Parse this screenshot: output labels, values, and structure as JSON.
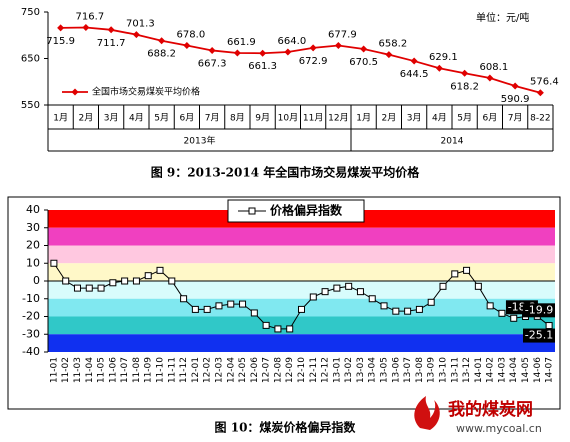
{
  "chart_data": [
    {
      "type": "line",
      "caption": "图 9：2013-2014 年全国市场交易煤炭平均价格",
      "unit": "单位：元/吨",
      "groups": [
        {
          "label": "2013年",
          "categories": [
            "1月",
            "2月",
            "3月",
            "4月",
            "5月",
            "6月",
            "7月",
            "8月",
            "9月",
            "10月",
            "11月",
            "12月"
          ]
        },
        {
          "label": "2014",
          "categories": [
            "1月",
            "2月",
            "3月",
            "4月",
            "5月",
            "6月",
            "7月",
            "8-22"
          ]
        }
      ],
      "series": [
        {
          "name": "全国市场交易煤炭平均价格",
          "color": "#e00000",
          "marker": "diamond",
          "values": [
            715.9,
            716.7,
            711.7,
            701.3,
            688.2,
            678.0,
            667.3,
            661.9,
            661.3,
            664.0,
            672.9,
            677.9,
            670.5,
            658.2,
            644.5,
            629.1,
            618.2,
            608.1,
            590.9,
            576.4
          ],
          "value_labels": [
            "715.9",
            "716.7",
            "711.7",
            "701.3",
            "688.2",
            "678.0",
            "667.3",
            "661.9",
            "661.3",
            "664.0",
            "672.9",
            "677.9",
            "670.5",
            "658.2",
            "644.5",
            "629.1",
            "618.2",
            "608.1",
            "590.9",
            "576.4"
          ]
        }
      ],
      "ylim": [
        550,
        750
      ],
      "yticks": [
        550,
        650,
        750
      ],
      "legend": "bottom-left"
    },
    {
      "type": "line",
      "caption": "图 10：煤炭价格偏异指数",
      "categories": [
        "11-01",
        "11-02",
        "11-03",
        "11-04",
        "11-05",
        "11-06",
        "11-07",
        "11-08",
        "11-09",
        "11-10",
        "11-11",
        "11-12",
        "12-01",
        "12-02",
        "12-03",
        "12-04",
        "12-05",
        "12-06",
        "12-07",
        "12-08",
        "12-09",
        "12-10",
        "12-11",
        "12-12",
        "13-01",
        "13-02",
        "13-03",
        "13-04",
        "13-05",
        "13-06",
        "13-07",
        "13-08",
        "13-09",
        "13-10",
        "13-11",
        "13-12",
        "14-01",
        "14-02",
        "14-03",
        "14-04",
        "14-05",
        "14-06",
        "14-07"
      ],
      "series": [
        {
          "name": "价格偏异指数",
          "color": "#000000",
          "marker": "square",
          "values": [
            10,
            0,
            -4,
            -4,
            -4,
            -1,
            0,
            0,
            3,
            6,
            0,
            -10,
            -16,
            -16,
            -14,
            -13,
            -13,
            -18,
            -25,
            -27,
            -27,
            -16,
            -9,
            -6,
            -4,
            -3,
            -6,
            -10,
            -14,
            -17,
            -17,
            -16,
            -12,
            -3,
            4,
            6,
            -3,
            -14,
            -18.2,
            -21,
            -20,
            -19.9,
            -25.1
          ],
          "value_labels": [
            null,
            null,
            null,
            null,
            null,
            null,
            null,
            null,
            null,
            null,
            null,
            null,
            null,
            null,
            null,
            null,
            null,
            null,
            null,
            null,
            null,
            null,
            null,
            null,
            null,
            null,
            null,
            null,
            null,
            null,
            null,
            null,
            null,
            null,
            null,
            null,
            null,
            null,
            "-18.2",
            null,
            null,
            "-19.9",
            "-25.1"
          ]
        }
      ],
      "bands": [
        {
          "from": 30,
          "to": 40,
          "color": "#ff0000"
        },
        {
          "from": 20,
          "to": 30,
          "color": "#f040c0"
        },
        {
          "from": 10,
          "to": 20,
          "color": "#ffc8e0"
        },
        {
          "from": 0,
          "to": 10,
          "color": "#fff8c8"
        },
        {
          "from": -10,
          "to": 0,
          "color": "#d8fcfc"
        },
        {
          "from": -20,
          "to": -10,
          "color": "#80e8f0"
        },
        {
          "from": -30,
          "to": -20,
          "color": "#30c8c8"
        },
        {
          "from": -40,
          "to": -30,
          "color": "#1030f0"
        }
      ],
      "ylim": [
        -40,
        40
      ],
      "yticks": [
        -40,
        -30,
        -20,
        -10,
        0,
        10,
        20,
        30,
        40
      ],
      "legend": "top"
    }
  ],
  "watermark": {
    "name": "我的煤炭网",
    "url": "www.mycoal.cn"
  }
}
